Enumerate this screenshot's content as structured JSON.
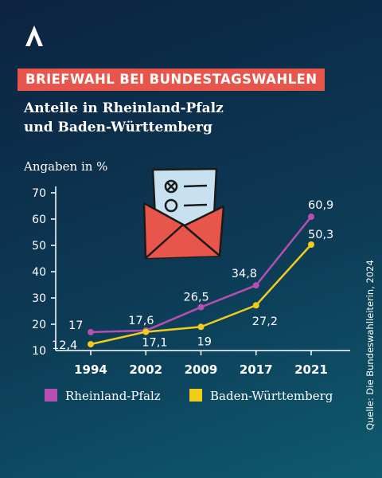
{
  "header": {
    "headline": "BRIEFWAHL BEI BUNDESTAGSWAHLEN",
    "subtitle_line1": "Anteile in Rheinland-Pfalz",
    "subtitle_line2": "und Baden-Württemberg"
  },
  "source": "Quelle: Die Bundeswahlleiterin, 2024",
  "colors": {
    "background": "#0d3a55",
    "headline_bg": "#e8554a",
    "rheinland_pfalz": "#b54fb2",
    "baden_wuerttemberg": "#f2cc1b"
  },
  "chart_data": {
    "type": "line",
    "ylabel": "Angaben in %",
    "ylim": [
      10,
      70
    ],
    "yticks": [
      10,
      20,
      30,
      40,
      50,
      60,
      70
    ],
    "categories": [
      "1994",
      "2002",
      "2009",
      "2017",
      "2021"
    ],
    "series": [
      {
        "name": "Rheinland-Pfalz",
        "color": "#b54fb2",
        "values": [
          17,
          17.6,
          26.5,
          34.8,
          60.9
        ],
        "labels": [
          "17",
          "17,6",
          "26,5",
          "34,8",
          "60,9"
        ]
      },
      {
        "name": "Baden-Württemberg",
        "color": "#f2cc1b",
        "values": [
          12.4,
          17.1,
          19,
          27.2,
          50.3
        ],
        "labels": [
          "12,4",
          "17,1",
          "19",
          "27,2",
          "50,3"
        ]
      }
    ]
  }
}
